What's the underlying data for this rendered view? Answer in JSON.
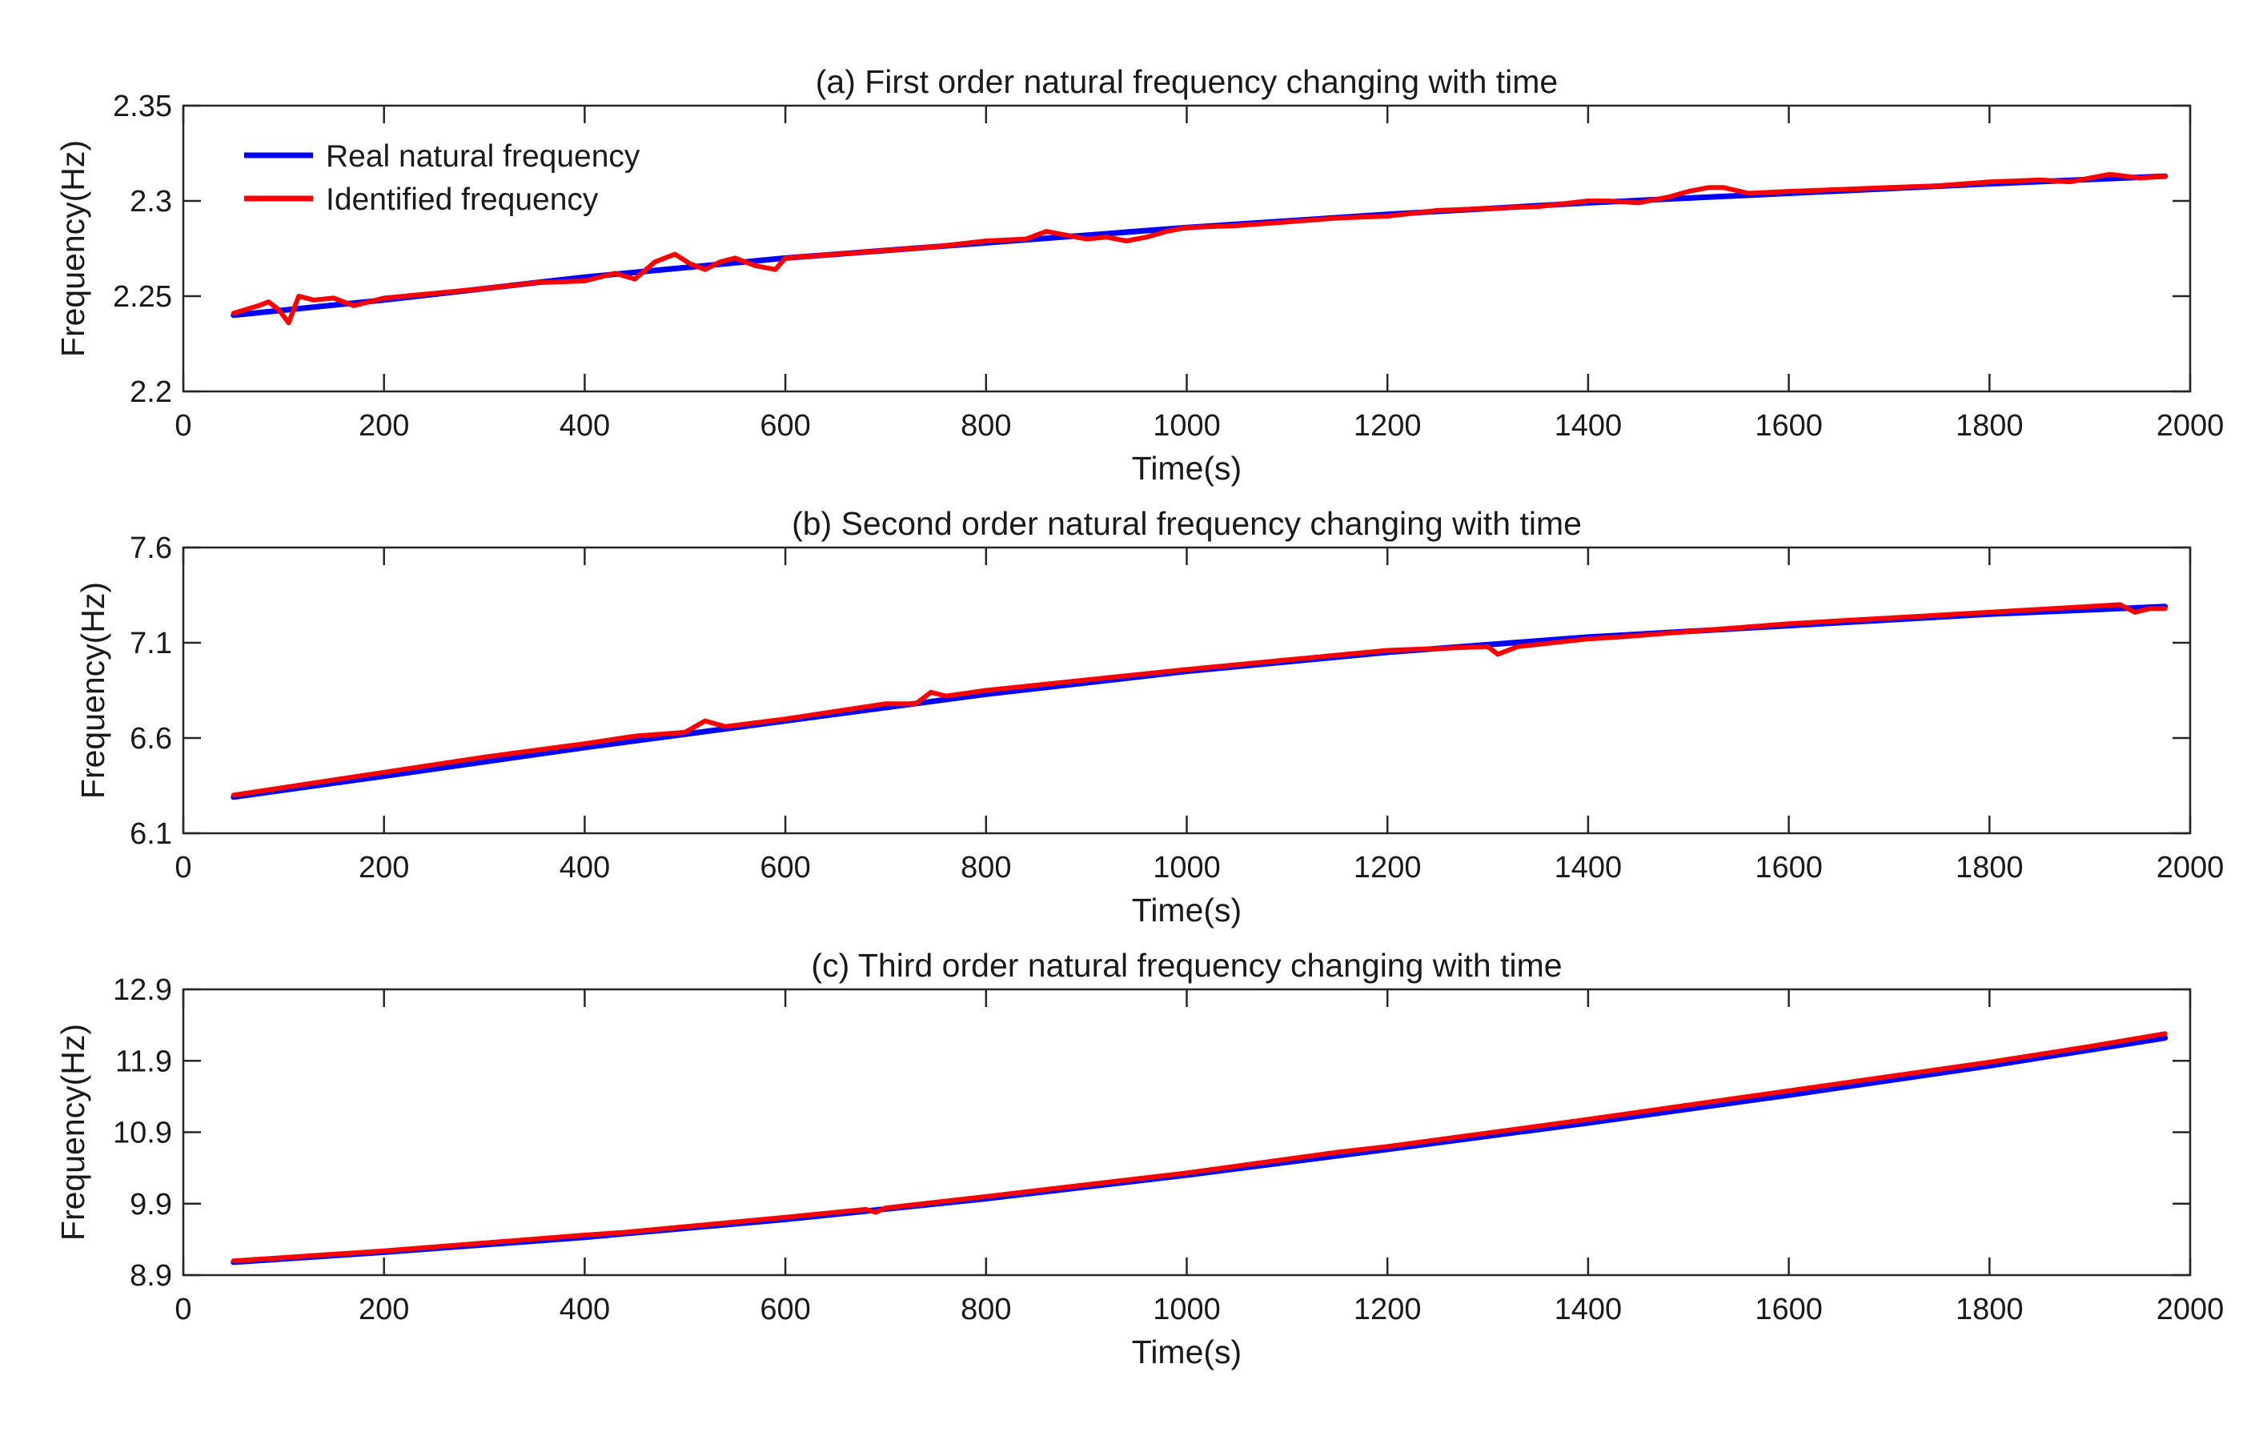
{
  "chart_data": [
    {
      "type": "line",
      "title": "(a) First order natural frequency changing with time",
      "xlabel": "Time(s)",
      "ylabel": "Frequency(Hz)",
      "xlim": [
        0,
        2000
      ],
      "ylim": [
        2.2,
        2.35
      ],
      "xticks": [
        0,
        200,
        400,
        600,
        800,
        1000,
        1200,
        1400,
        1600,
        1800,
        2000
      ],
      "xtick_labels": [
        "0",
        "200",
        "400",
        "600",
        "800",
        "1000",
        "1200",
        "1400",
        "1600",
        "1800",
        "2000"
      ],
      "yticks": [
        2.2,
        2.25,
        2.3,
        2.35
      ],
      "ytick_labels": [
        "2.2",
        "2.25",
        "2.3",
        "2.35"
      ],
      "grid": false,
      "legend": {
        "placement": "top-left",
        "entries": [
          "Real natural frequency",
          "Identified frequency"
        ]
      },
      "series": [
        {
          "name": "Real natural frequency",
          "color": "#0000ff",
          "x": [
            50,
            200,
            400,
            600,
            800,
            1000,
            1200,
            1400,
            1600,
            1800,
            1975
          ],
          "y": [
            2.24,
            2.248,
            2.26,
            2.27,
            2.278,
            2.286,
            2.293,
            2.299,
            2.304,
            2.309,
            2.313
          ]
        },
        {
          "name": "Identified frequency",
          "color": "#ff0000",
          "x": [
            50,
            75,
            85,
            95,
            105,
            115,
            130,
            150,
            170,
            200,
            240,
            300,
            350,
            400,
            430,
            450,
            470,
            490,
            505,
            520,
            535,
            550,
            570,
            590,
            600,
            650,
            700,
            750,
            800,
            840,
            860,
            880,
            900,
            920,
            940,
            960,
            980,
            1000,
            1050,
            1100,
            1150,
            1200,
            1250,
            1300,
            1350,
            1400,
            1420,
            1450,
            1480,
            1500,
            1520,
            1535,
            1560,
            1600,
            1650,
            1700,
            1750,
            1800,
            1850,
            1880,
            1900,
            1920,
            1950,
            1975
          ],
          "y": [
            2.241,
            2.245,
            2.247,
            2.243,
            2.236,
            2.25,
            2.248,
            2.249,
            2.245,
            2.249,
            2.251,
            2.254,
            2.257,
            2.258,
            2.262,
            2.259,
            2.268,
            2.272,
            2.267,
            2.264,
            2.268,
            2.27,
            2.266,
            2.264,
            2.27,
            2.272,
            2.274,
            2.276,
            2.279,
            2.28,
            2.284,
            2.282,
            2.28,
            2.281,
            2.279,
            2.281,
            2.284,
            2.286,
            2.287,
            2.289,
            2.291,
            2.292,
            2.295,
            2.296,
            2.297,
            2.3,
            2.3,
            2.299,
            2.302,
            2.305,
            2.307,
            2.307,
            2.304,
            2.305,
            2.306,
            2.307,
            2.308,
            2.31,
            2.311,
            2.31,
            2.312,
            2.314,
            2.312,
            2.313
          ]
        }
      ]
    },
    {
      "type": "line",
      "title": "(b) Second order natural frequency changing with time",
      "xlabel": "Time(s)",
      "ylabel": "Frequency(Hz)",
      "xlim": [
        0,
        2000
      ],
      "ylim": [
        6.1,
        7.6
      ],
      "xticks": [
        0,
        200,
        400,
        600,
        800,
        1000,
        1200,
        1400,
        1600,
        1800,
        2000
      ],
      "xtick_labels": [
        "0",
        "200",
        "400",
        "600",
        "800",
        "1000",
        "1200",
        "1400",
        "1600",
        "1800",
        "2000"
      ],
      "yticks": [
        6.1,
        6.6,
        7.1,
        7.6
      ],
      "ytick_labels": [
        "6.1",
        "6.6",
        "7.1",
        "7.6"
      ],
      "grid": false,
      "series": [
        {
          "name": "Real natural frequency",
          "color": "#0000ff",
          "x": [
            50,
            200,
            400,
            600,
            800,
            1000,
            1200,
            1400,
            1600,
            1800,
            1975
          ],
          "y": [
            6.29,
            6.4,
            6.55,
            6.69,
            6.83,
            6.95,
            7.05,
            7.13,
            7.19,
            7.25,
            7.29
          ]
        },
        {
          "name": "Identified frequency",
          "color": "#ff0000",
          "x": [
            50,
            200,
            300,
            400,
            450,
            500,
            520,
            540,
            600,
            700,
            730,
            745,
            760,
            800,
            1000,
            1100,
            1200,
            1300,
            1310,
            1330,
            1400,
            1430,
            1600,
            1800,
            1930,
            1945,
            1960,
            1975
          ],
          "y": [
            6.3,
            6.42,
            6.5,
            6.57,
            6.61,
            6.63,
            6.69,
            6.66,
            6.7,
            6.78,
            6.78,
            6.84,
            6.82,
            6.85,
            6.96,
            7.01,
            7.06,
            7.08,
            7.04,
            7.08,
            7.12,
            7.13,
            7.2,
            7.26,
            7.3,
            7.26,
            7.28,
            7.28
          ]
        }
      ]
    },
    {
      "type": "line",
      "title": "(c) Third order natural frequency changing with time",
      "xlabel": "Time(s)",
      "ylabel": "Frequency(Hz)",
      "xlim": [
        0,
        2000
      ],
      "ylim": [
        8.9,
        12.9
      ],
      "xticks": [
        0,
        200,
        400,
        600,
        800,
        1000,
        1200,
        1400,
        1600,
        1800,
        2000
      ],
      "xtick_labels": [
        "0",
        "200",
        "400",
        "600",
        "800",
        "1000",
        "1200",
        "1400",
        "1600",
        "1800",
        "2000"
      ],
      "yticks": [
        8.9,
        9.9,
        10.9,
        11.9,
        12.9
      ],
      "ytick_labels": [
        "8.9",
        "9.9",
        "10.9",
        "11.9",
        "12.9"
      ],
      "grid": false,
      "series": [
        {
          "name": "Real natural frequency",
          "color": "#0000ff",
          "x": [
            50,
            200,
            400,
            600,
            800,
            1000,
            1200,
            1400,
            1600,
            1800,
            1975
          ],
          "y": [
            9.08,
            9.22,
            9.43,
            9.68,
            9.97,
            10.3,
            10.66,
            11.03,
            11.42,
            11.83,
            12.22
          ]
        },
        {
          "name": "Identified frequency",
          "color": "#ff0000",
          "x": [
            50,
            200,
            400,
            440,
            600,
            680,
            690,
            700,
            800,
            1000,
            1150,
            1200,
            1400,
            1600,
            1800,
            1900,
            1975
          ],
          "y": [
            9.1,
            9.24,
            9.46,
            9.5,
            9.71,
            9.82,
            9.78,
            9.84,
            10.0,
            10.33,
            10.62,
            10.7,
            11.08,
            11.48,
            11.88,
            12.1,
            12.28
          ]
        }
      ]
    }
  ]
}
